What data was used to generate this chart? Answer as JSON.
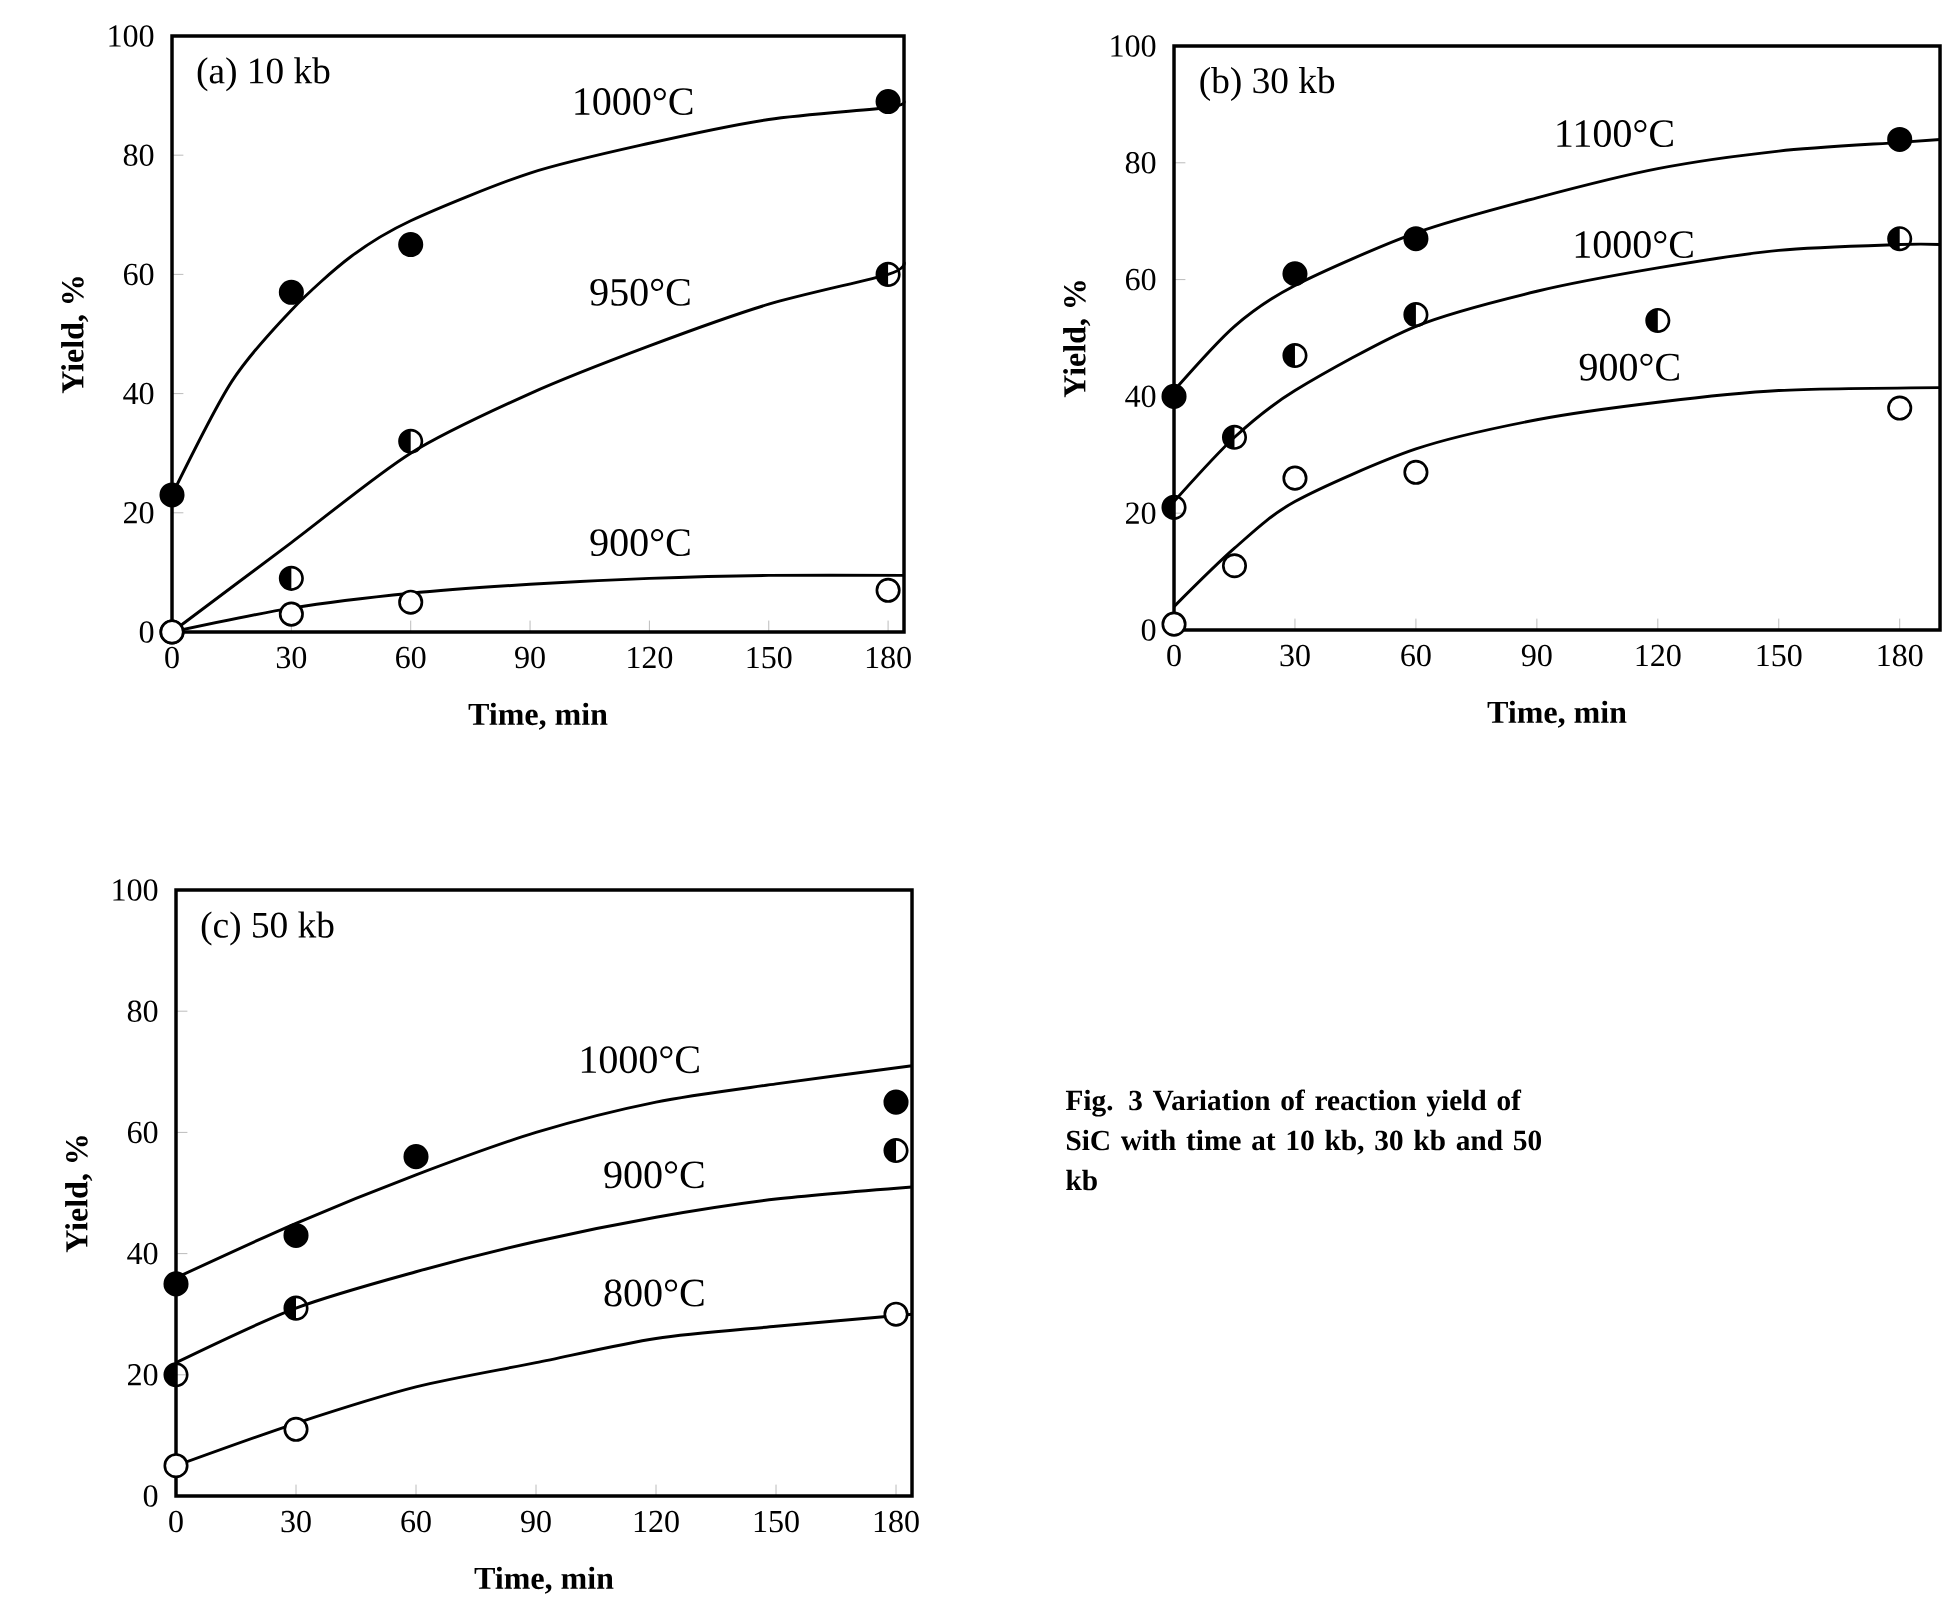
{
  "chart_data": [
    {
      "type": "scatter",
      "title": "(a)  10 kb",
      "xlabel": "Time, min",
      "ylabel": "Yield, %",
      "xlim": [
        0,
        184
      ],
      "ylim": [
        0,
        100
      ],
      "xticks": [
        0,
        30,
        60,
        90,
        120,
        150,
        180
      ],
      "yticks": [
        0,
        20,
        40,
        60,
        80,
        100
      ],
      "grid": false,
      "series": [
        {
          "marker": "circle",
          "color": "#000000",
          "x": [
            0,
            30,
            60,
            180
          ],
          "values": [
            23,
            57,
            65,
            89
          ]
        },
        {
          "marker": "circle",
          "color": "#000000",
          "x": [
            0,
            30,
            60,
            180
          ],
          "values": [
            0,
            9,
            32,
            60
          ]
        },
        {
          "marker": "circle",
          "color": "#000000",
          "x": [
            0,
            30,
            60,
            180
          ],
          "values": [
            0,
            3,
            5,
            7
          ]
        },
        {
          "type": "line",
          "marker": "none",
          "color": "#000000",
          "x": [
            0,
            15,
            30,
            45,
            60,
            90,
            120,
            150,
            180,
            184
          ],
          "values": [
            23,
            42,
            54,
            63,
            69,
            77,
            82,
            86,
            88,
            89
          ]
        },
        {
          "type": "line",
          "marker": "none",
          "color": "#000000",
          "x": [
            0,
            30,
            60,
            90,
            120,
            150,
            180,
            184
          ],
          "values": [
            0,
            15,
            30,
            40,
            48,
            55,
            60,
            62
          ]
        },
        {
          "type": "line",
          "marker": "none",
          "color": "#000000",
          "x": [
            0,
            30,
            60,
            90,
            120,
            150,
            184
          ],
          "values": [
            0,
            4,
            6.5,
            8,
            9,
            9.5,
            9.5
          ]
        }
      ],
      "annotations": [
        "1000°C",
        "950°C",
        "900°C"
      ]
    },
    {
      "type": "scatter",
      "title": "(b)  30 kb",
      "xlabel": "Time, min",
      "ylabel": "Yield, %",
      "xlim": [
        0,
        190
      ],
      "ylim": [
        0,
        100
      ],
      "xticks": [
        0,
        30,
        60,
        90,
        120,
        150,
        180
      ],
      "yticks": [
        0,
        20,
        40,
        60,
        80,
        100
      ],
      "grid": false,
      "series": [
        {
          "marker": "circle",
          "color": "#000000",
          "x": [
            0,
            30,
            60,
            180
          ],
          "values": [
            40,
            61,
            67,
            84
          ]
        },
        {
          "marker": "circle",
          "color": "#000000",
          "x": [
            0,
            15,
            30,
            60,
            120,
            180
          ],
          "values": [
            21,
            33,
            47,
            54,
            53,
            67
          ]
        },
        {
          "marker": "circle",
          "color": "#000000",
          "x": [
            0,
            15,
            30,
            60,
            180
          ],
          "values": [
            1,
            11,
            26,
            27,
            38
          ]
        },
        {
          "type": "line",
          "marker": "none",
          "color": "#000000",
          "x": [
            0,
            15,
            30,
            60,
            90,
            120,
            150,
            180,
            190
          ],
          "values": [
            41,
            52,
            59,
            68,
            74,
            79,
            82,
            83.5,
            84
          ]
        },
        {
          "type": "line",
          "marker": "none",
          "color": "#000000",
          "x": [
            0,
            15,
            30,
            60,
            90,
            120,
            150,
            180,
            190
          ],
          "values": [
            22,
            33,
            41,
            52,
            58,
            62,
            65,
            66,
            66
          ]
        },
        {
          "type": "line",
          "marker": "none",
          "color": "#000000",
          "x": [
            0,
            15,
            30,
            60,
            90,
            120,
            150,
            190
          ],
          "values": [
            4,
            14,
            22,
            31,
            36,
            39,
            41,
            41.5
          ]
        }
      ],
      "annotations": [
        "1100°C",
        "1000°C",
        "900°C"
      ]
    },
    {
      "type": "scatter",
      "title": "(c)  50 kb",
      "xlabel": "Time, min",
      "ylabel": "Yield, %",
      "xlim": [
        0,
        184
      ],
      "ylim": [
        0,
        100
      ],
      "xticks": [
        0,
        30,
        60,
        90,
        120,
        150,
        180
      ],
      "yticks": [
        0,
        20,
        40,
        60,
        80,
        100
      ],
      "grid": false,
      "series": [
        {
          "marker": "circle",
          "color": "#000000",
          "x": [
            0,
            30,
            60,
            180
          ],
          "values": [
            35,
            43,
            56,
            65
          ]
        },
        {
          "marker": "circle",
          "color": "#000000",
          "x": [
            0,
            30,
            180
          ],
          "values": [
            20,
            31,
            57
          ]
        },
        {
          "marker": "circle",
          "color": "#000000",
          "x": [
            0,
            30,
            180
          ],
          "values": [
            5,
            11,
            30
          ]
        },
        {
          "type": "line",
          "marker": "none",
          "color": "#000000",
          "x": [
            0,
            30,
            60,
            90,
            120,
            150,
            184
          ],
          "values": [
            36,
            45,
            53,
            60,
            65,
            68,
            71
          ]
        },
        {
          "type": "line",
          "marker": "none",
          "color": "#000000",
          "x": [
            0,
            30,
            60,
            90,
            120,
            150,
            184
          ],
          "values": [
            22,
            31,
            37,
            42,
            46,
            49,
            51
          ]
        },
        {
          "type": "line",
          "marker": "none",
          "color": "#000000",
          "x": [
            0,
            30,
            60,
            90,
            120,
            150,
            184
          ],
          "values": [
            5,
            12,
            18,
            22,
            26,
            28,
            30
          ]
        }
      ],
      "annotations": [
        "1000°C",
        "900°C",
        "800°C",
        "Fig. 3   Variation of reaction yield of SiC with time at 10 kb, 30 kb and 50 kb"
      ]
    }
  ]
}
